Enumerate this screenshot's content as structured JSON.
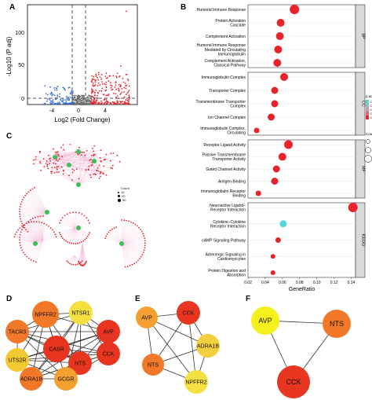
{
  "panels": {
    "A": "A",
    "B": "B",
    "C": "C",
    "D": "D",
    "E": "E",
    "F": "F"
  },
  "volcano": {
    "ylabel": "-Log10 (P adj)",
    "xlabel": "Log2 (Fold Change)",
    "x_ticks": [
      "-4",
      "0",
      "4"
    ],
    "y_ticks": [
      "0",
      "50",
      "100"
    ]
  },
  "chart_data": [
    {
      "type": "scatter",
      "panel": "A",
      "xlabel": "Log2 (Fold Change)",
      "ylabel": "-Log10 (P adj)",
      "xlim": [
        -6,
        6
      ],
      "ylim": [
        0,
        150
      ],
      "x_ticks": [
        -4,
        0,
        4
      ],
      "y_ticks": [
        0,
        50,
        100
      ],
      "thresholds": {
        "x": [
          -1,
          1
        ],
        "y": 1.3
      },
      "colors": {
        "down": "#2f6fdc",
        "up": "#e8232a",
        "ns": "#707070"
      }
    },
    {
      "type": "scatter",
      "panel": "B",
      "xlabel": "GeneRatio",
      "xlim": [
        0.02,
        0.145
      ],
      "x_ticks": [
        "0.02",
        "0.04",
        "0.06",
        "0.08",
        "0.10",
        "0.12",
        "0.14"
      ],
      "legend": {
        "color_title": "p.adjust",
        "color_ticks": [
          "0.05",
          "0.04",
          "0.03",
          "0.02",
          "0.01"
        ],
        "size_title": "Counts",
        "size_ticks": [
          "22",
          "58",
          "93"
        ]
      },
      "facets": [
        {
          "name": "BP",
          "terms": [
            {
              "label": [
                "Humoral Immune Response"
              ],
              "x": 0.074,
              "color": "#e8232a",
              "r": 6
            },
            {
              "label": [
                "Protein Activation",
                "Cascade"
              ],
              "x": 0.058,
              "color": "#e8232a",
              "r": 5
            },
            {
              "label": [
                "Complement Activation"
              ],
              "x": 0.057,
              "color": "#e8232a",
              "r": 5
            },
            {
              "label": [
                "Humoral Immune Response",
                "Mediated by Circulating",
                "Immunoglobulin"
              ],
              "x": 0.055,
              "color": "#e8232a",
              "r": 5
            },
            {
              "label": [
                "Complement Activation,",
                "Classical Pathway"
              ],
              "x": 0.054,
              "color": "#e8232a",
              "r": 5
            }
          ]
        },
        {
          "name": "CC",
          "terms": [
            {
              "label": [
                "Immunoglobulin Complex"
              ],
              "x": 0.062,
              "color": "#e8232a",
              "r": 5
            },
            {
              "label": [
                "Transporter Complex"
              ],
              "x": 0.051,
              "color": "#e8232a",
              "r": 4.5
            },
            {
              "label": [
                "Transmembrane Transporter",
                "Complex"
              ],
              "x": 0.051,
              "color": "#e8232a",
              "r": 4.5
            },
            {
              "label": [
                "Ion Channel Complex"
              ],
              "x": 0.047,
              "color": "#e8232a",
              "r": 4.5
            },
            {
              "label": [
                "Immunoglobulin Complex,",
                "Circulating"
              ],
              "x": 0.03,
              "color": "#e8232a",
              "r": 3.5
            }
          ]
        },
        {
          "name": "MF",
          "terms": [
            {
              "label": [
                "Receptor Ligand Activity"
              ],
              "x": 0.067,
              "color": "#e8232a",
              "r": 5.5
            },
            {
              "label": [
                "Passive Transmembrane",
                "Transporter Activity"
              ],
              "x": 0.06,
              "color": "#e8232a",
              "r": 5
            },
            {
              "label": [
                "Gated Channel Activity"
              ],
              "x": 0.053,
              "color": "#e8232a",
              "r": 4.5
            },
            {
              "label": [
                "Antigen Binding"
              ],
              "x": 0.051,
              "color": "#e8232a",
              "r": 4.5
            },
            {
              "label": [
                "Immunoglobulin Receptor",
                "Binding"
              ],
              "x": 0.032,
              "color": "#e8232a",
              "r": 3.5
            }
          ]
        },
        {
          "name": "KEGG",
          "terms": [
            {
              "label": [
                "Neuroactive Ligand–",
                "Receptor Interaction"
              ],
              "x": 0.142,
              "color": "#e8232a",
              "r": 6
            },
            {
              "label": [
                "Cytokine–Cytokine",
                "Receptor Interaction"
              ],
              "x": 0.061,
              "color": "#5ad6d6",
              "r": 4.5
            },
            {
              "label": [
                "cAMP Signaling Pathway"
              ],
              "x": 0.055,
              "color": "#e8232a",
              "r": 3.5
            },
            {
              "label": [
                "Adrenergic Signaling in",
                "Cardiomyocytes"
              ],
              "x": 0.049,
              "color": "#e8232a",
              "r": 3
            },
            {
              "label": [
                "Protein Digestion and",
                "Absorption"
              ],
              "x": 0.049,
              "color": "#e8232a",
              "r": 3
            }
          ]
        }
      ]
    }
  ],
  "network_c": {
    "legend_title": "Count",
    "legend_items": [
      "10",
      "20",
      "30"
    ]
  },
  "network_d": {
    "nodes": [
      {
        "name": "NPFFR2",
        "color": "#f07828"
      },
      {
        "name": "NTSR1",
        "color": "#f4e040"
      },
      {
        "name": "AVP",
        "color": "#e8351f"
      },
      {
        "name": "TACR3",
        "color": "#f07828"
      },
      {
        "name": "CASR",
        "color": "#e8351f"
      },
      {
        "name": "CCK",
        "color": "#e8351f"
      },
      {
        "name": "UTS2R",
        "color": "#f4c830"
      },
      {
        "name": "NTS",
        "color": "#e8351f"
      },
      {
        "name": "ADRA1B",
        "color": "#f07828"
      },
      {
        "name": "GCGR",
        "color": "#f4a030"
      }
    ]
  },
  "network_e": {
    "nodes": [
      {
        "name": "AVP",
        "color": "#f4a030"
      },
      {
        "name": "CCK",
        "color": "#e8351f"
      },
      {
        "name": "ADRA1B",
        "color": "#f4d040"
      },
      {
        "name": "NTS",
        "color": "#f07828"
      },
      {
        "name": "NPFFR2",
        "color": "#f4e040"
      }
    ]
  },
  "network_f": {
    "nodes": [
      {
        "name": "AVP",
        "color": "#f4f01a"
      },
      {
        "name": "NTS",
        "color": "#f07828"
      },
      {
        "name": "CCK",
        "color": "#e8351f"
      }
    ]
  }
}
